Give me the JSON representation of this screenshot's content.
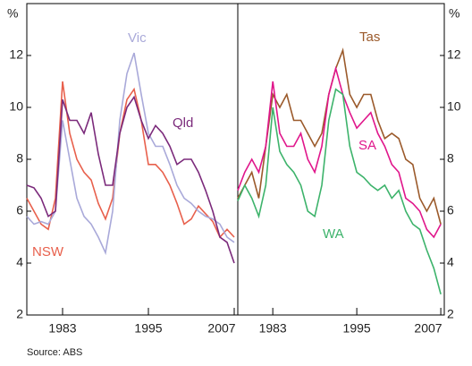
{
  "chart_data": [
    {
      "type": "line",
      "y_label": "%",
      "y_axis_side": "left",
      "xlim": [
        1978,
        2007.5
      ],
      "xticks": [
        1983,
        1995,
        2007
      ],
      "ylim": [
        2,
        14
      ],
      "yticks": [
        2,
        4,
        6,
        8,
        10,
        12
      ],
      "x": [
        1978,
        1979,
        1980,
        1981,
        1982,
        1983,
        1984,
        1985,
        1986,
        1987,
        1988,
        1989,
        1990,
        1991,
        1992,
        1993,
        1994,
        1995,
        1996,
        1997,
        1998,
        1999,
        2000,
        2001,
        2002,
        2003,
        2004,
        2005,
        2006,
        2007
      ],
      "series": [
        {
          "name": "NSW",
          "color": "#e8604c",
          "values": [
            6.5,
            6.0,
            5.5,
            5.3,
            6.5,
            11.0,
            9.0,
            8.0,
            7.5,
            7.2,
            6.3,
            5.7,
            6.5,
            9.0,
            10.3,
            10.7,
            9.5,
            7.8,
            7.8,
            7.5,
            7.0,
            6.3,
            5.5,
            5.7,
            6.2,
            5.9,
            5.6,
            5.0,
            5.3,
            5.0
          ]
        },
        {
          "name": "Vic",
          "color": "#a9a9d9",
          "values": [
            5.8,
            5.5,
            5.6,
            5.5,
            6.0,
            9.5,
            8.0,
            6.5,
            5.8,
            5.5,
            5.0,
            4.4,
            6.0,
            9.5,
            11.3,
            12.1,
            10.5,
            9.0,
            8.5,
            8.5,
            7.8,
            7.0,
            6.5,
            6.3,
            6.0,
            5.8,
            5.7,
            5.5,
            5.0,
            4.8
          ]
        },
        {
          "name": "Qld",
          "color": "#7b2a7b",
          "values": [
            7.0,
            6.9,
            6.5,
            5.8,
            6.0,
            10.3,
            9.5,
            9.5,
            9.0,
            9.8,
            8.2,
            7.0,
            7.0,
            9.0,
            10.0,
            10.4,
            9.5,
            8.8,
            9.3,
            9.0,
            8.5,
            7.8,
            8.0,
            8.0,
            7.5,
            6.8,
            6.0,
            5.0,
            4.8,
            4.0
          ]
        }
      ]
    },
    {
      "type": "line",
      "y_label": "%",
      "y_axis_side": "right",
      "xlim": [
        1978,
        2007.5
      ],
      "xticks": [
        1983,
        1995,
        2007
      ],
      "ylim": [
        2,
        14
      ],
      "yticks": [
        2,
        4,
        6,
        8,
        10,
        12
      ],
      "x": [
        1978,
        1979,
        1980,
        1981,
        1982,
        1983,
        1984,
        1985,
        1986,
        1987,
        1988,
        1989,
        1990,
        1991,
        1992,
        1993,
        1994,
        1995,
        1996,
        1997,
        1998,
        1999,
        2000,
        2001,
        2002,
        2003,
        2004,
        2005,
        2006,
        2007
      ],
      "series": [
        {
          "name": "Tas",
          "color": "#9b5a2b",
          "values": [
            6.5,
            7.0,
            7.5,
            6.5,
            8.5,
            10.5,
            10.0,
            10.5,
            9.5,
            9.5,
            9.0,
            8.5,
            9.0,
            10.5,
            11.5,
            12.2,
            10.5,
            10.0,
            10.5,
            10.5,
            9.5,
            8.8,
            9.0,
            8.8,
            8.0,
            7.8,
            6.5,
            6.0,
            6.5,
            5.5
          ]
        },
        {
          "name": "SA",
          "color": "#e0168b",
          "values": [
            6.8,
            7.5,
            8.0,
            7.5,
            8.5,
            11.0,
            9.0,
            8.5,
            8.5,
            9.0,
            8.0,
            7.5,
            8.5,
            10.5,
            11.5,
            10.5,
            9.8,
            9.2,
            9.5,
            9.8,
            9.0,
            8.5,
            7.8,
            7.5,
            6.5,
            6.3,
            6.0,
            5.3,
            5.0,
            5.5
          ]
        },
        {
          "name": "WA",
          "color": "#3db36b",
          "values": [
            6.4,
            7.0,
            6.5,
            5.8,
            7.0,
            10.0,
            8.3,
            7.8,
            7.5,
            7.0,
            6.0,
            5.8,
            7.0,
            9.5,
            10.7,
            10.5,
            8.5,
            7.5,
            7.3,
            7.0,
            6.8,
            7.0,
            6.5,
            6.8,
            6.0,
            5.5,
            5.3,
            4.5,
            3.8,
            2.8
          ]
        }
      ]
    }
  ],
  "source": "Source: ABS"
}
